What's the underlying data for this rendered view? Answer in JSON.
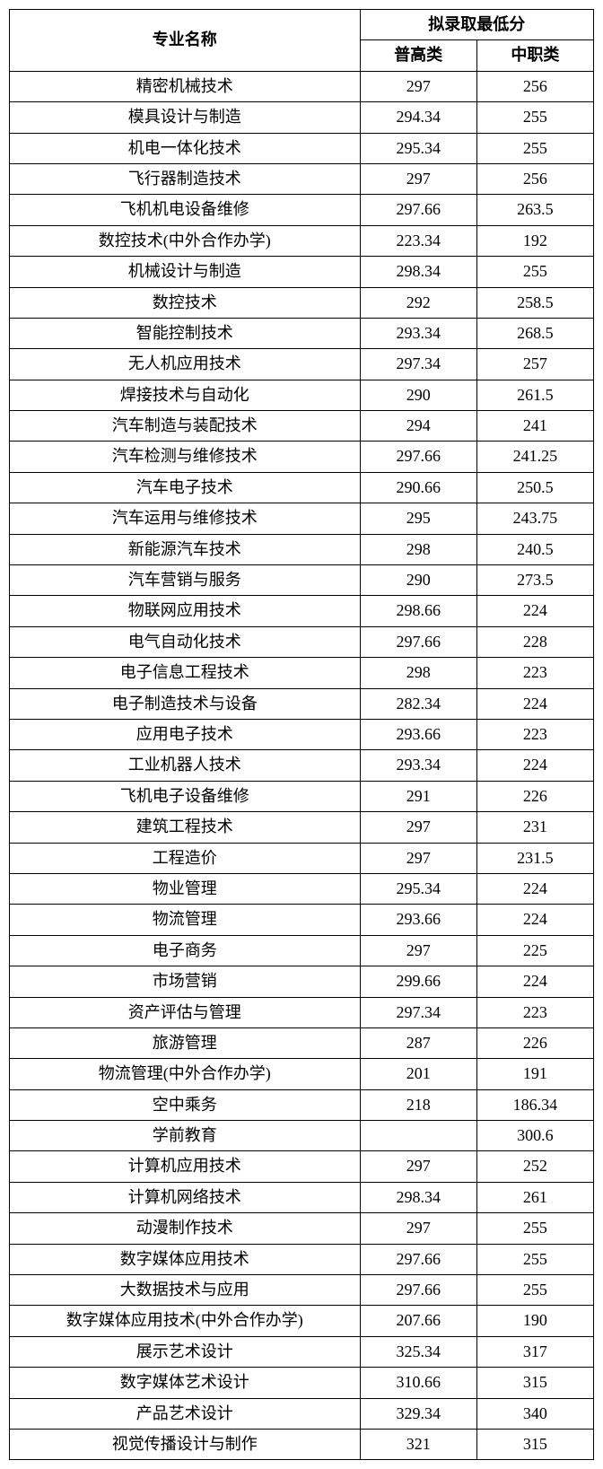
{
  "table": {
    "type": "table",
    "background_color": "#ffffff",
    "border_color": "#000000",
    "text_color": "#000000",
    "font_size": 18,
    "header_font_weight": "bold",
    "column_widths": [
      "60%",
      "20%",
      "20%"
    ],
    "headers": {
      "major_name": "专业名称",
      "score_group": "拟录取最低分",
      "general_high": "普高类",
      "vocational": "中职类"
    },
    "rows": [
      {
        "major": "精密机械技术",
        "general": "297",
        "vocational": "256"
      },
      {
        "major": "模具设计与制造",
        "general": "294.34",
        "vocational": "255"
      },
      {
        "major": "机电一体化技术",
        "general": "295.34",
        "vocational": "255"
      },
      {
        "major": "飞行器制造技术",
        "general": "297",
        "vocational": "256"
      },
      {
        "major": "飞机机电设备维修",
        "general": "297.66",
        "vocational": "263.5"
      },
      {
        "major": "数控技术(中外合作办学)",
        "general": "223.34",
        "vocational": "192"
      },
      {
        "major": "机械设计与制造",
        "general": "298.34",
        "vocational": "255"
      },
      {
        "major": "数控技术",
        "general": "292",
        "vocational": "258.5"
      },
      {
        "major": "智能控制技术",
        "general": "293.34",
        "vocational": "268.5"
      },
      {
        "major": "无人机应用技术",
        "general": "297.34",
        "vocational": "257"
      },
      {
        "major": "焊接技术与自动化",
        "general": "290",
        "vocational": "261.5"
      },
      {
        "major": "汽车制造与装配技术",
        "general": "294",
        "vocational": "241"
      },
      {
        "major": "汽车检测与维修技术",
        "general": "297.66",
        "vocational": "241.25"
      },
      {
        "major": "汽车电子技术",
        "general": "290.66",
        "vocational": "250.5"
      },
      {
        "major": "汽车运用与维修技术",
        "general": "295",
        "vocational": "243.75"
      },
      {
        "major": "新能源汽车技术",
        "general": "298",
        "vocational": "240.5"
      },
      {
        "major": "汽车营销与服务",
        "general": "290",
        "vocational": "273.5"
      },
      {
        "major": "物联网应用技术",
        "general": "298.66",
        "vocational": "224"
      },
      {
        "major": "电气自动化技术",
        "general": "297.66",
        "vocational": "228"
      },
      {
        "major": "电子信息工程技术",
        "general": "298",
        "vocational": "223"
      },
      {
        "major": "电子制造技术与设备",
        "general": "282.34",
        "vocational": "224"
      },
      {
        "major": "应用电子技术",
        "general": "293.66",
        "vocational": "223"
      },
      {
        "major": "工业机器人技术",
        "general": "293.34",
        "vocational": "224"
      },
      {
        "major": "飞机电子设备维修",
        "general": "291",
        "vocational": "226"
      },
      {
        "major": "建筑工程技术",
        "general": "297",
        "vocational": "231"
      },
      {
        "major": "工程造价",
        "general": "297",
        "vocational": "231.5"
      },
      {
        "major": "物业管理",
        "general": "295.34",
        "vocational": "224"
      },
      {
        "major": "物流管理",
        "general": "293.66",
        "vocational": "224"
      },
      {
        "major": "电子商务",
        "general": "297",
        "vocational": "225"
      },
      {
        "major": "市场营销",
        "general": "299.66",
        "vocational": "224"
      },
      {
        "major": "资产评估与管理",
        "general": "297.34",
        "vocational": "223"
      },
      {
        "major": "旅游管理",
        "general": "287",
        "vocational": "226"
      },
      {
        "major": "物流管理(中外合作办学)",
        "general": "201",
        "vocational": "191"
      },
      {
        "major": "空中乘务",
        "general": "218",
        "vocational": "186.34"
      },
      {
        "major": "学前教育",
        "general": "",
        "vocational": "300.6"
      },
      {
        "major": "计算机应用技术",
        "general": "297",
        "vocational": "252"
      },
      {
        "major": "计算机网络技术",
        "general": "298.34",
        "vocational": "261"
      },
      {
        "major": "动漫制作技术",
        "general": "297",
        "vocational": "255"
      },
      {
        "major": "数字媒体应用技术",
        "general": "297.66",
        "vocational": "255"
      },
      {
        "major": "大数据技术与应用",
        "general": "297.66",
        "vocational": "255"
      },
      {
        "major": "数字媒体应用技术(中外合作办学)",
        "general": "207.66",
        "vocational": "190"
      },
      {
        "major": "展示艺术设计",
        "general": "325.34",
        "vocational": "317"
      },
      {
        "major": "数字媒体艺术设计",
        "general": "310.66",
        "vocational": "315"
      },
      {
        "major": "产品艺术设计",
        "general": "329.34",
        "vocational": "340"
      },
      {
        "major": "视觉传播设计与制作",
        "general": "321",
        "vocational": "315"
      }
    ]
  }
}
